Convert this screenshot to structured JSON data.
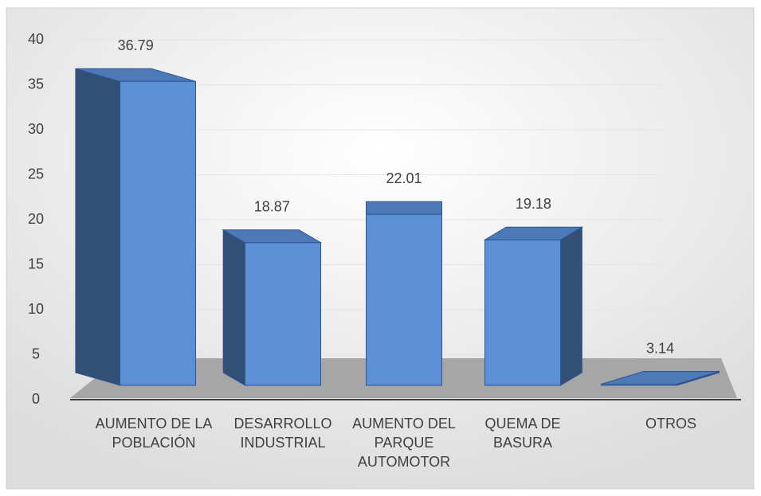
{
  "chart_data": {
    "type": "bar3d",
    "categories": [
      "AUMENTO DE LA POBLACIÓN",
      "DESARROLLO INDUSTRIAL",
      "AUMENTO DEL PARQUE AUTOMOTOR",
      "QUEMA DE BASURA",
      "OTROS"
    ],
    "values": [
      36.79,
      18.87,
      22.01,
      19.18,
      3.14
    ],
    "color": "#5b8fd6",
    "ylim": [
      0,
      40
    ],
    "yticks": [
      0,
      5,
      10,
      15,
      20,
      25,
      30,
      35,
      40
    ],
    "grid": true
  }
}
